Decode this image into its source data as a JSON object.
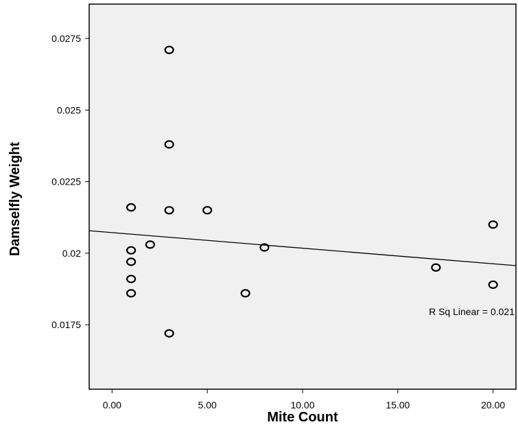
{
  "chart_data": {
    "type": "scatter",
    "xlabel": "Mite Count",
    "ylabel": "Damselfly Weight",
    "xlim": [
      -1.2,
      21.2
    ],
    "ylim": [
      0.01525,
      0.0287
    ],
    "x_ticks": [
      {
        "value": 0,
        "label": "0.00"
      },
      {
        "value": 5,
        "label": "5.00"
      },
      {
        "value": 10,
        "label": "10.00"
      },
      {
        "value": 15,
        "label": "15.00"
      },
      {
        "value": 20,
        "label": "20.00"
      }
    ],
    "y_ticks": [
      {
        "value": 0.0175,
        "label": "0.0175"
      },
      {
        "value": 0.02,
        "label": "0.02"
      },
      {
        "value": 0.0225,
        "label": "0.0225"
      },
      {
        "value": 0.025,
        "label": "0.025"
      },
      {
        "value": 0.0275,
        "label": "0.0275"
      }
    ],
    "points": [
      {
        "x": 1,
        "y": 0.0216
      },
      {
        "x": 1,
        "y": 0.0201
      },
      {
        "x": 1,
        "y": 0.0197
      },
      {
        "x": 1,
        "y": 0.0191
      },
      {
        "x": 1,
        "y": 0.0186
      },
      {
        "x": 2,
        "y": 0.0203
      },
      {
        "x": 3,
        "y": 0.0271
      },
      {
        "x": 3,
        "y": 0.0238
      },
      {
        "x": 3,
        "y": 0.0215
      },
      {
        "x": 3,
        "y": 0.0172
      },
      {
        "x": 5,
        "y": 0.0215
      },
      {
        "x": 7,
        "y": 0.0186
      },
      {
        "x": 8,
        "y": 0.0202
      },
      {
        "x": 17,
        "y": 0.0195
      },
      {
        "x": 20,
        "y": 0.021
      },
      {
        "x": 20,
        "y": 0.0189
      }
    ],
    "fit_line": {
      "intercept": 0.02072,
      "slope": -5.45e-05
    },
    "annotation": "R Sq Linear = 0.021",
    "grid": false,
    "colors": {
      "plot_background": "#f0f0f0",
      "marker": "#000000",
      "line": "#000000"
    }
  }
}
